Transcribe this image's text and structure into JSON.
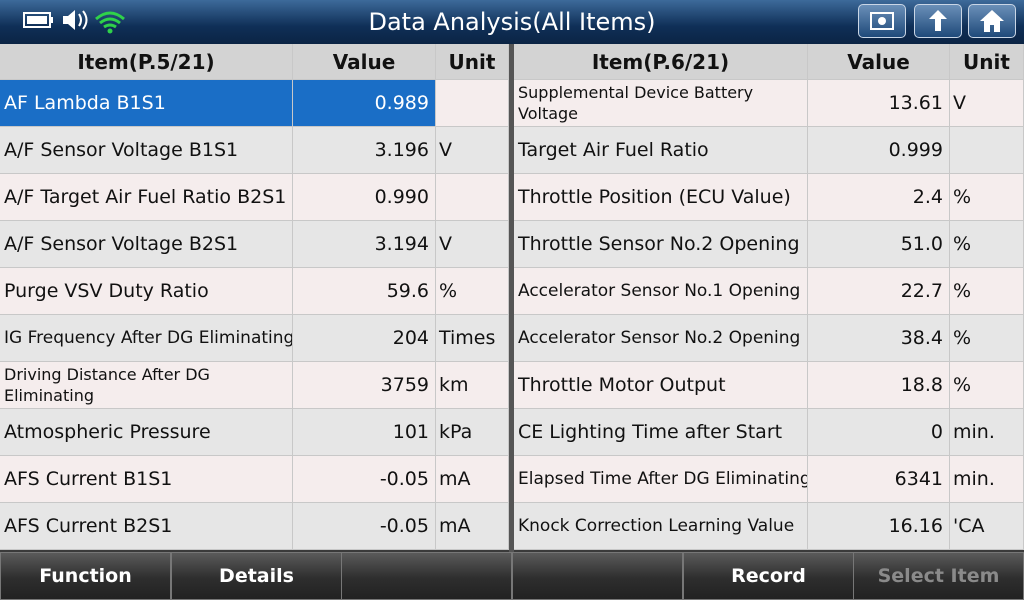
{
  "header": {
    "title": "Data Analysis(All Items)"
  },
  "tables": [
    {
      "columns": [
        "Item(P.5/21)",
        "Value",
        "Unit"
      ],
      "rows": [
        [
          "AF Lambda B1S1",
          "0.989",
          null
        ],
        [
          "A/F Sensor Voltage B1S1",
          "3.196",
          "V"
        ],
        [
          "A/F Target Air Fuel Ratio B2S1",
          "0.990",
          null
        ],
        [
          "A/F Sensor Voltage B2S1",
          "3.194",
          "V"
        ],
        [
          "Purge VSV Duty Ratio",
          "59.6",
          "%"
        ],
        [
          "IG Frequency After DG Eliminating",
          "204",
          "Times"
        ],
        [
          "Driving Distance After DG Eliminating",
          "3759",
          "km"
        ],
        [
          "Atmospheric Pressure",
          "101",
          "kPa"
        ],
        [
          "AFS Current B1S1",
          "-0.05",
          "mA"
        ],
        [
          "AFS Current B2S1",
          "-0.05",
          "mA"
        ]
      ]
    },
    {
      "columns": [
        "Item(P.6/21)",
        "Value",
        "Unit"
      ],
      "rows": [
        [
          "Supplemental Device Battery Voltage",
          "13.61",
          "V"
        ],
        [
          "Target Air Fuel Ratio",
          "0.999",
          null
        ],
        [
          "Throttle Position (ECU Value)",
          "2.4",
          "%"
        ],
        [
          "Throttle Sensor No.2 Opening",
          "51.0",
          "%"
        ],
        [
          "Accelerator Sensor No.1 Opening",
          "22.7",
          "%"
        ],
        [
          "Accelerator Sensor No.2 Opening",
          "38.4",
          "%"
        ],
        [
          "Throttle Motor Output",
          "18.8",
          "%"
        ],
        [
          "CE Lighting Time after Start",
          "0",
          "min."
        ],
        [
          "Elapsed Time After DG Eliminating",
          "6341",
          "min."
        ],
        [
          "Knock Correction Learning Value",
          "16.16",
          "'CA"
        ]
      ]
    }
  ],
  "buttons": [
    {
      "label": "Function",
      "enabled": true
    },
    {
      "label": "Details",
      "enabled": true
    },
    {
      "label": null,
      "enabled": true
    },
    {
      "label": null,
      "enabled": true
    },
    {
      "label": "Record",
      "enabled": true
    },
    {
      "label": "Select Item",
      "enabled": false
    }
  ]
}
